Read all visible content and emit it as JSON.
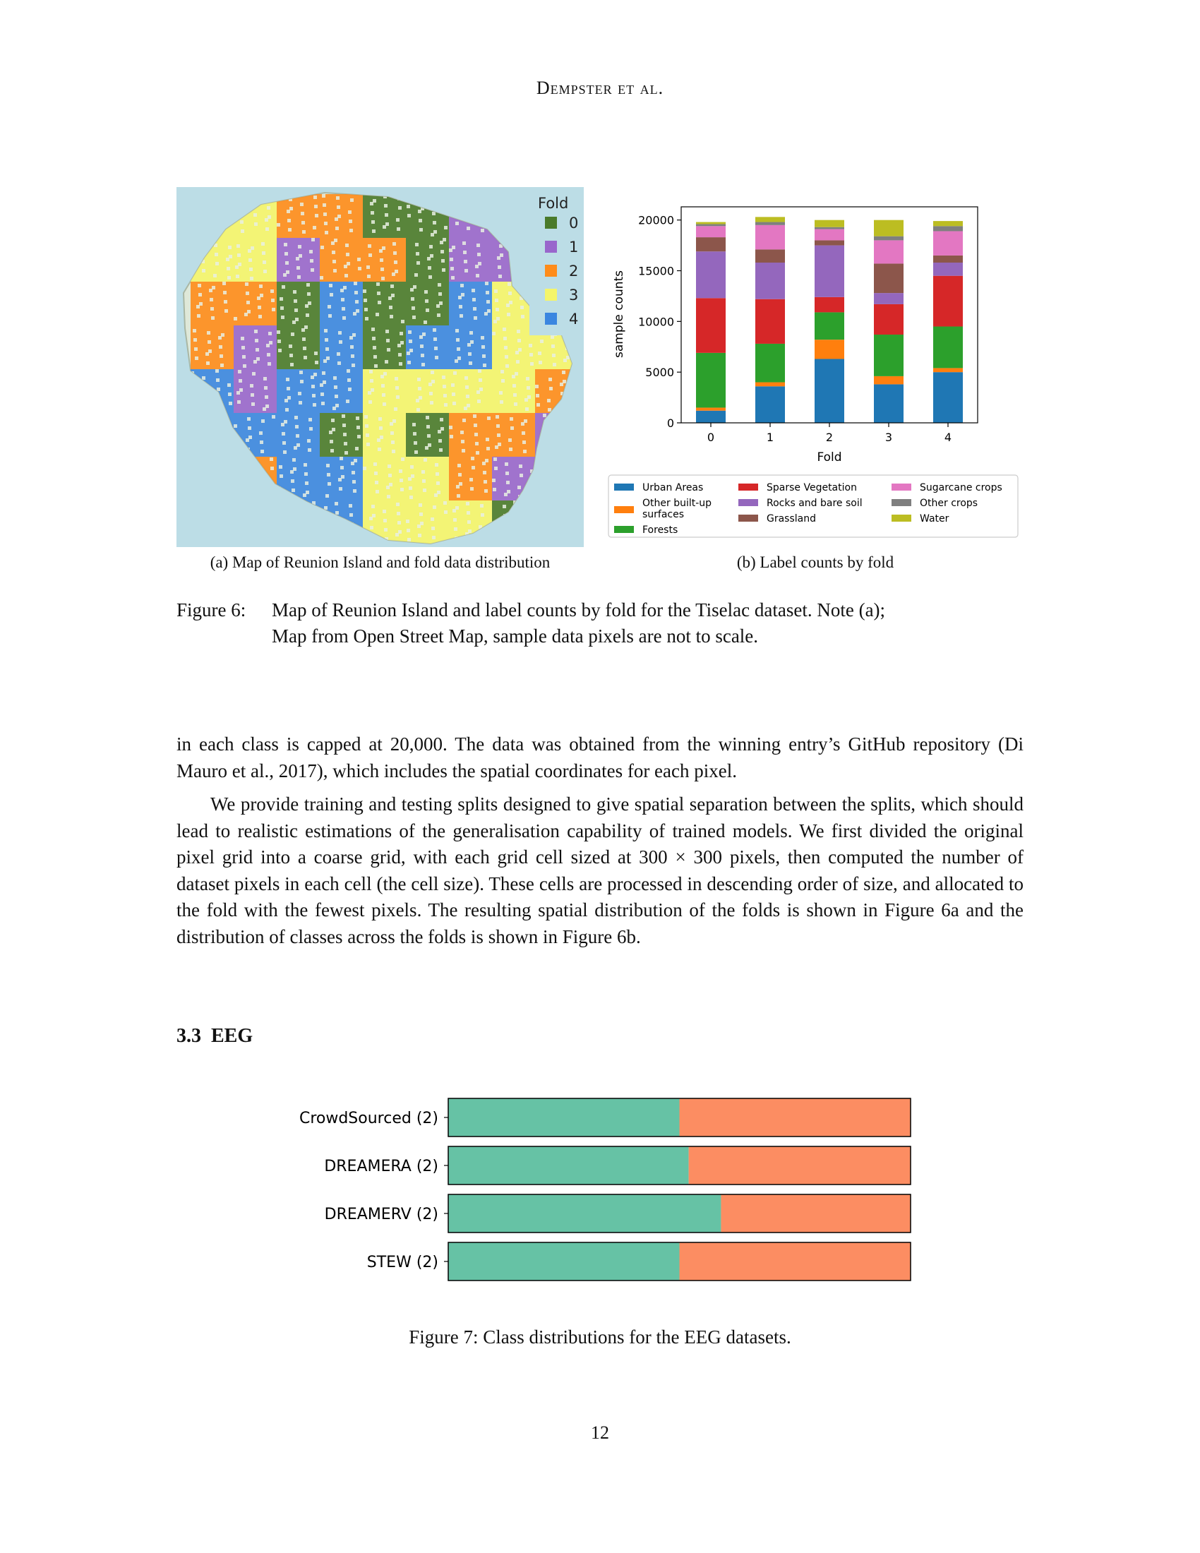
{
  "header": {
    "running_head": "Dempster et al."
  },
  "figure6": {
    "map": {
      "legend_title": "Fold",
      "legend": [
        {
          "label": "0",
          "color": "#4a7a2a"
        },
        {
          "label": "1",
          "color": "#9966cc"
        },
        {
          "label": "2",
          "color": "#ff8c1a"
        },
        {
          "label": "3",
          "color": "#f5f56a"
        },
        {
          "label": "4",
          "color": "#3b86e0"
        }
      ],
      "sea_color": "#bcdde6"
    },
    "subcaption_a": "(a) Map of Reunion Island and fold data distribution",
    "subcaption_b": "(b) Label counts by fold",
    "caption_label": "Figure 6:",
    "caption_text_1": "Map of Reunion Island and label counts by fold for the Tiselac dataset. Note (a);",
    "caption_text_2": "Map from Open Street Map, sample data pixels are not to scale."
  },
  "chart_data": [
    {
      "type": "bar",
      "stacked": true,
      "xlabel": "Fold",
      "ylabel": "sample counts",
      "categories": [
        "0",
        "1",
        "2",
        "3",
        "4"
      ],
      "yticks": [
        "0",
        "5000",
        "10000",
        "15000",
        "20000"
      ],
      "ylim": [
        0,
        21300
      ],
      "legend_position": "bottom",
      "series": [
        {
          "name": "Urban Areas",
          "color": "#1f77b4",
          "values": [
            1200,
            3600,
            6300,
            3800,
            5000
          ]
        },
        {
          "name": "Other built-up surfaces",
          "color": "#ff7f0e",
          "values": [
            300,
            400,
            1900,
            800,
            400
          ]
        },
        {
          "name": "Forests",
          "color": "#2ca02c",
          "values": [
            5400,
            3800,
            2700,
            4100,
            4100
          ]
        },
        {
          "name": "Sparse Vegetation",
          "color": "#d62728",
          "values": [
            5400,
            4400,
            1500,
            3000,
            5000
          ]
        },
        {
          "name": "Rocks and bare soil",
          "color": "#9467bd",
          "values": [
            4600,
            3600,
            5100,
            1100,
            1300
          ]
        },
        {
          "name": "Grassland",
          "color": "#8c564b",
          "values": [
            1400,
            1300,
            500,
            2900,
            700
          ]
        },
        {
          "name": "Sugarcane crops",
          "color": "#e377c2",
          "values": [
            1100,
            2400,
            1100,
            2300,
            2400
          ]
        },
        {
          "name": "Other crops",
          "color": "#7f7f7f",
          "values": [
            200,
            300,
            200,
            400,
            500
          ]
        },
        {
          "name": "Water",
          "color": "#bcbd22",
          "values": [
            200,
            500,
            700,
            1600,
            500
          ]
        }
      ]
    },
    {
      "type": "bar",
      "orientation": "horizontal",
      "stacked": true,
      "normalized": true,
      "categories": [
        "CrowdSourced (2)",
        "DREAMERA (2)",
        "DREAMERV (2)",
        "STEW (2)"
      ],
      "series": [
        {
          "color": "#66c2a5",
          "values": [
            0.5,
            0.52,
            0.59,
            0.5
          ]
        },
        {
          "color": "#fc8d62",
          "values": [
            0.5,
            0.48,
            0.41,
            0.5
          ]
        }
      ]
    }
  ],
  "chart_legend_lines": {
    "Other built-up surfaces": [
      "Other built-up",
      "surfaces"
    ]
  },
  "body": {
    "para1": "in each class is capped at 20,000. The data was obtained from the winning entry’s GitHub repository (Di Mauro et al., 2017), which includes the spatial coordinates for each pixel.",
    "para2": "We provide training and testing splits designed to give spatial separation between the splits, which should lead to realistic estimations of the generalisation capability of trained models. We first divided the original pixel grid into a coarse grid, with each grid cell sized at 300 × 300 pixels, then computed the number of dataset pixels in each cell (the cell size). These cells are processed in descending order of size, and allocated to the fold with the fewest pixels. The resulting spatial distribution of the folds is shown in Figure 6a and the distribution of classes across the folds is shown in Figure 6b."
  },
  "section": {
    "number": "3.3",
    "title": "EEG"
  },
  "figure7": {
    "caption": "Figure 7: Class distributions for the EEG datasets."
  },
  "page_number": "12"
}
